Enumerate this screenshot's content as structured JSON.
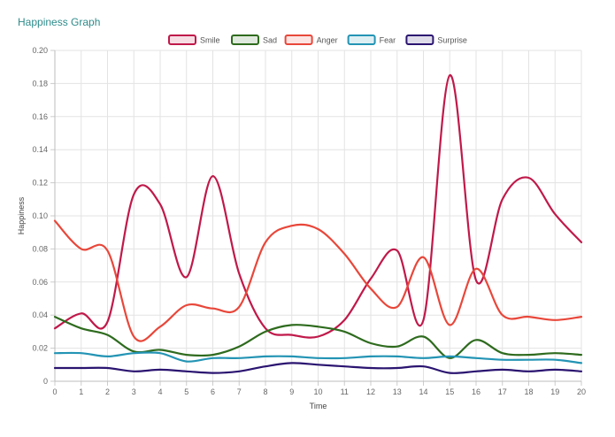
{
  "header": {
    "title": "Happiness Graph"
  },
  "chart_data": {
    "type": "line",
    "title": "Happiness Graph",
    "xlabel": "Time",
    "ylabel": "Happiness",
    "x": [
      0,
      1,
      2,
      3,
      4,
      5,
      6,
      7,
      8,
      9,
      10,
      11,
      12,
      13,
      14,
      15,
      16,
      17,
      18,
      19,
      20
    ],
    "ylim": [
      0,
      0.2
    ],
    "yticks": [
      "0",
      "0.02",
      "0.04",
      "0.06",
      "0.08",
      "0.10",
      "0.12",
      "0.14",
      "0.16",
      "0.18",
      "0.20"
    ],
    "grid": true,
    "legend_position": "top-center",
    "series": [
      {
        "name": "Smile",
        "color": "#c0194a",
        "values": [
          0.032,
          0.041,
          0.036,
          0.113,
          0.107,
          0.063,
          0.124,
          0.065,
          0.032,
          0.028,
          0.027,
          0.037,
          0.062,
          0.079,
          0.037,
          0.185,
          0.061,
          0.11,
          0.123,
          0.101,
          0.084
        ]
      },
      {
        "name": "Sad",
        "color": "#2e6b1e",
        "values": [
          0.039,
          0.032,
          0.028,
          0.018,
          0.019,
          0.016,
          0.016,
          0.021,
          0.03,
          0.034,
          0.033,
          0.03,
          0.023,
          0.021,
          0.027,
          0.014,
          0.025,
          0.017,
          0.016,
          0.017,
          0.016
        ]
      },
      {
        "name": "Anger",
        "color": "#e8473a",
        "values": [
          0.097,
          0.08,
          0.079,
          0.027,
          0.033,
          0.046,
          0.044,
          0.045,
          0.084,
          0.094,
          0.092,
          0.077,
          0.056,
          0.045,
          0.075,
          0.034,
          0.068,
          0.04,
          0.039,
          0.037,
          0.039
        ]
      },
      {
        "name": "Fear",
        "color": "#2394b4",
        "values": [
          0.017,
          0.017,
          0.015,
          0.017,
          0.017,
          0.012,
          0.014,
          0.014,
          0.015,
          0.015,
          0.014,
          0.014,
          0.015,
          0.015,
          0.014,
          0.015,
          0.014,
          0.013,
          0.013,
          0.013,
          0.011
        ]
      },
      {
        "name": "Surprise",
        "color": "#2a1470",
        "values": [
          0.008,
          0.008,
          0.008,
          0.006,
          0.007,
          0.006,
          0.005,
          0.006,
          0.009,
          0.011,
          0.01,
          0.009,
          0.008,
          0.008,
          0.009,
          0.005,
          0.006,
          0.007,
          0.006,
          0.007,
          0.006
        ]
      }
    ]
  }
}
